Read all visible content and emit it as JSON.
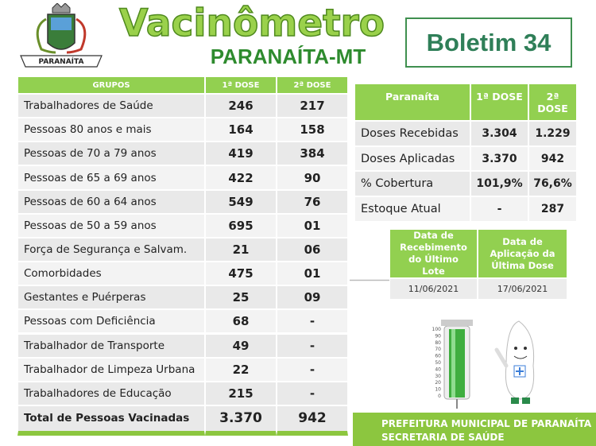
{
  "header": {
    "logo_text": "PARANAÍTA",
    "title": "Vacinômetro",
    "subtitle": "PARANAÍTA-MT",
    "bulletin": "Boletim 34"
  },
  "groups_table": {
    "columns": [
      "GRUPOS",
      "1ª DOSE",
      "2ª DOSE"
    ],
    "rows": [
      [
        "Trabalhadores de Saúde",
        "246",
        "217"
      ],
      [
        "Pessoas 80 anos e mais",
        "164",
        "158"
      ],
      [
        "Pessoas de 70 a 79 anos",
        "419",
        "384"
      ],
      [
        "Pessoas de 65 a 69 anos",
        "422",
        "90"
      ],
      [
        "Pessoas de 60 a 64 anos",
        "549",
        "76"
      ],
      [
        "Pessoas de 50 a 59 anos",
        "695",
        "01"
      ],
      [
        "Força de Segurança e Salvam.",
        "21",
        "06"
      ],
      [
        "Comorbidades",
        "475",
        "01"
      ],
      [
        "Gestantes e Puérperas",
        "25",
        "09"
      ],
      [
        "Pessoas com Deficiência",
        "68",
        "-"
      ],
      [
        "Trabalhador de Transporte",
        "49",
        "-"
      ],
      [
        "Trabalhador de Limpeza Urbana",
        "22",
        "-"
      ],
      [
        "Trabalhadores de Educação",
        "215",
        "-"
      ]
    ],
    "total": [
      "Total de Pessoas Vacinadas",
      "3.370",
      "942"
    ]
  },
  "summary_table": {
    "columns": [
      "Paranaíta",
      "1ª DOSE",
      "2ª DOSE"
    ],
    "rows": [
      [
        "Doses Recebidas",
        "3.304",
        "1.229"
      ],
      [
        "Doses Aplicadas",
        "3.370",
        "942"
      ],
      [
        "% Cobertura",
        "101,9%",
        "76,6%"
      ],
      [
        "Estoque Atual",
        "-",
        "287"
      ]
    ]
  },
  "dates_table": {
    "columns": [
      "Data de Recebimento do Último Lote",
      "Data de Aplicação da Última Dose"
    ],
    "rows": [
      [
        "11/06/2021",
        "17/06/2021"
      ]
    ]
  },
  "syringe": {
    "scale": [
      "100",
      "90",
      "80",
      "70",
      "60",
      "50",
      "40",
      "30",
      "20",
      "10",
      "0"
    ]
  },
  "footer": {
    "lines": [
      "PREFEITURA MUNICIPAL DE PARANAÍTA",
      "SECRETARIA DE SAÚDE"
    ]
  }
}
